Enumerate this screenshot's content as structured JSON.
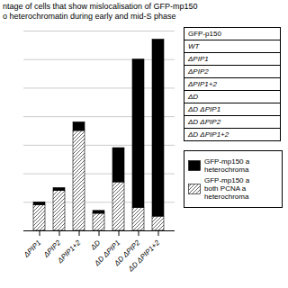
{
  "chart_data": {
    "type": "bar",
    "title": "ntage of cells that show mislocalisation of GFP-mp150",
    "subtitle": "o heterochromatin during early and mid-S phase",
    "categories": [
      "ΔPIP1",
      "ΔPIP2",
      "ΔPIP1+2",
      "ΔD",
      "ΔD ΔPIP1",
      "ΔD ΔPIP2",
      "ΔD ΔPIP1+2"
    ],
    "series": [
      {
        "name": "GFP-mp150 a\nboth PCNA a\nheterochroma",
        "color": "#ffffff",
        "values": [
          9,
          14,
          35,
          6,
          17,
          8,
          5
        ]
      },
      {
        "name": "GFP-mp150 a\nheterochroma",
        "color": "#000000",
        "values": [
          1,
          1,
          3,
          1,
          12,
          52,
          62
        ]
      }
    ],
    "stacked": true,
    "ylim": [
      0,
      70
    ],
    "yticks": [
      0,
      10,
      20,
      30,
      40,
      50,
      60,
      70
    ],
    "grid": true,
    "tick_labels": "x",
    "legend": "lower right",
    "annotations": [
      "GFP-p150",
      "WT",
      "ΔPIP1",
      "ΔPIP2",
      "ΔPIP1+2",
      "ΔD",
      "ΔD ΔPIP1",
      "ΔD ΔPIP2",
      "ΔD ΔPIP1+2"
    ]
  }
}
